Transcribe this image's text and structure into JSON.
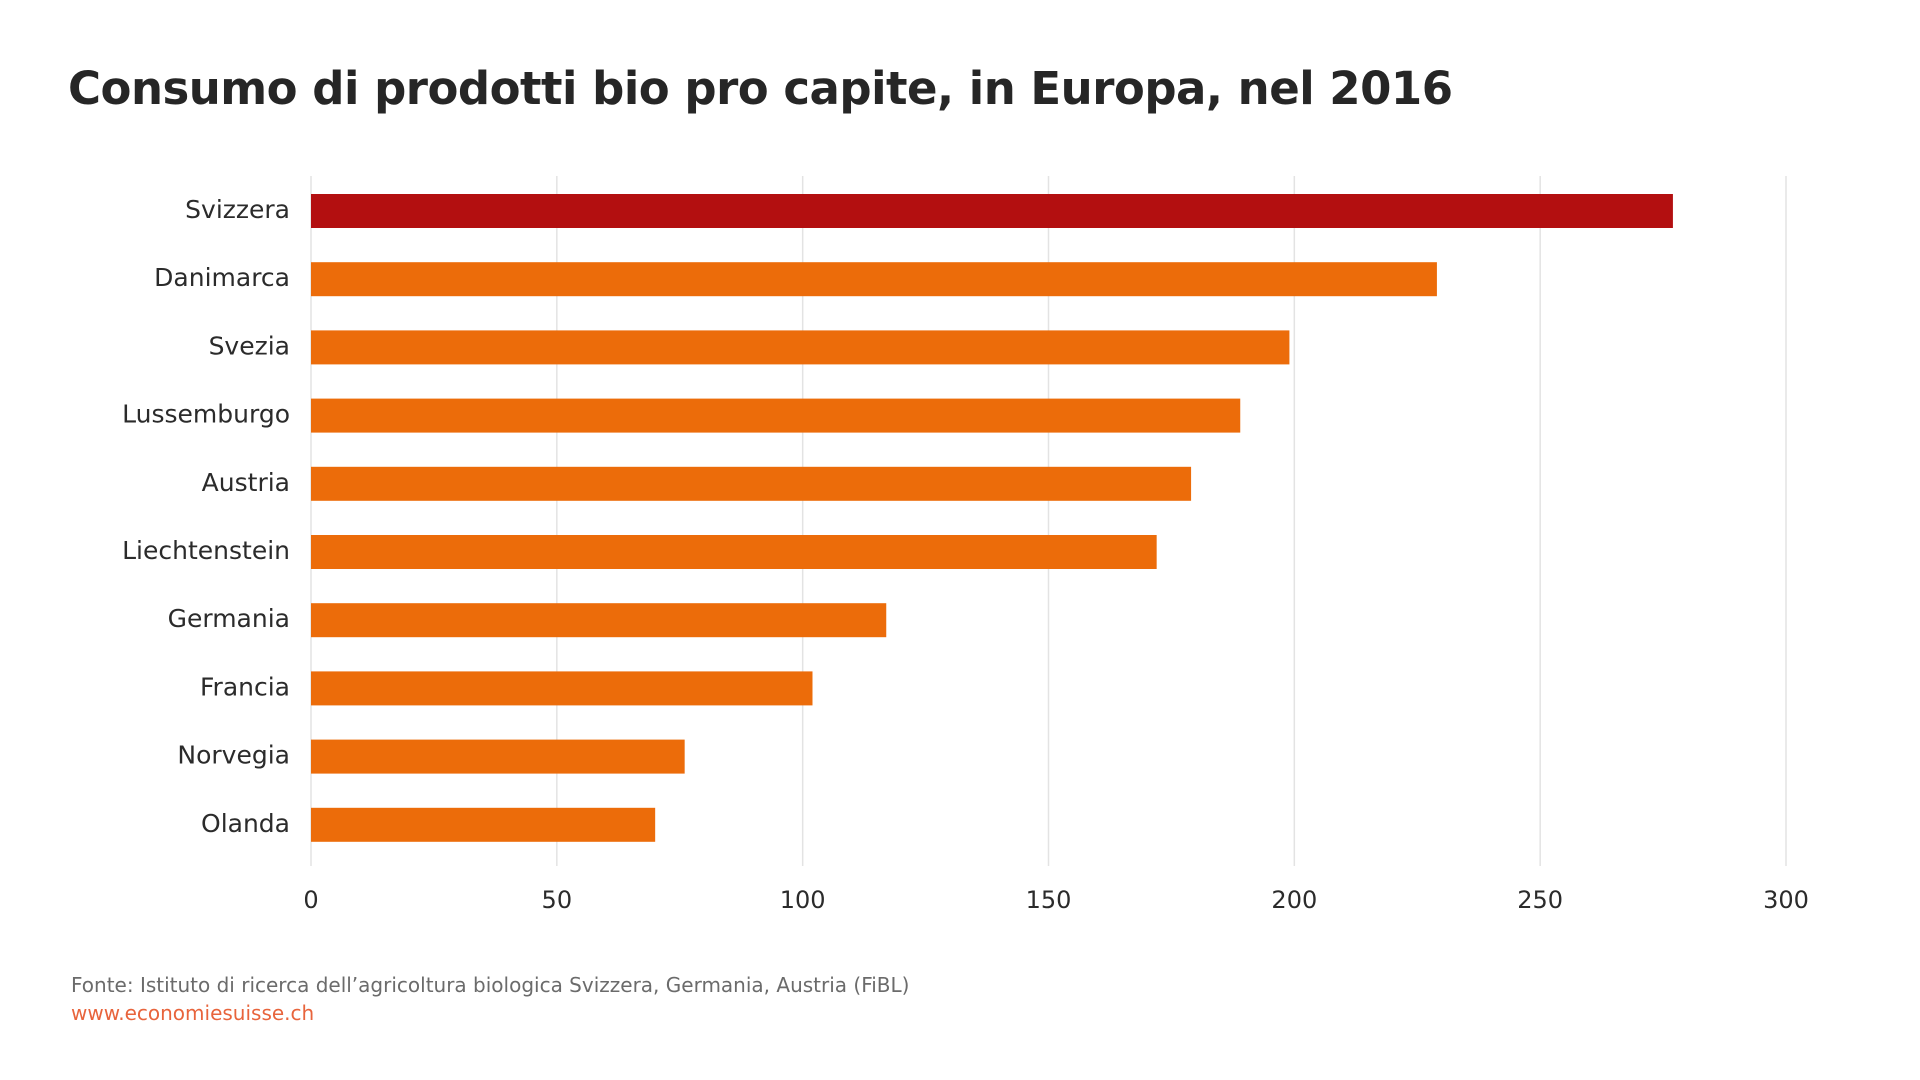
{
  "title": "Consumo di prodotti bio pro capite, in Europa, nel 2016",
  "colors": {
    "highlight": "#b30f10",
    "bar": "#ec6c0a",
    "grid": "#e3e3e3",
    "text": "#2b2b2b",
    "link": "#e8643c"
  },
  "chart_data": {
    "type": "bar",
    "orientation": "horizontal",
    "categories": [
      "Svizzera",
      "Danimarca",
      "Svezia",
      "Lussemburgo",
      "Austria",
      "Liechtenstein",
      "Germania",
      "Francia",
      "Norvegia",
      "Olanda"
    ],
    "values": [
      277,
      229,
      199,
      189,
      179,
      172,
      117,
      102,
      76,
      70
    ],
    "highlight_category": "Svizzera",
    "xlim": [
      0,
      300
    ],
    "xticks": [
      0,
      50,
      100,
      150,
      200,
      250,
      300
    ],
    "grid": true,
    "xlabel": "",
    "ylabel": ""
  },
  "footer": {
    "source": "Fonte: Istituto di ricerca dell’agricoltura biologica Svizzera, Germania, Austria (FiBL)",
    "url": "www.economiesuisse.ch"
  }
}
